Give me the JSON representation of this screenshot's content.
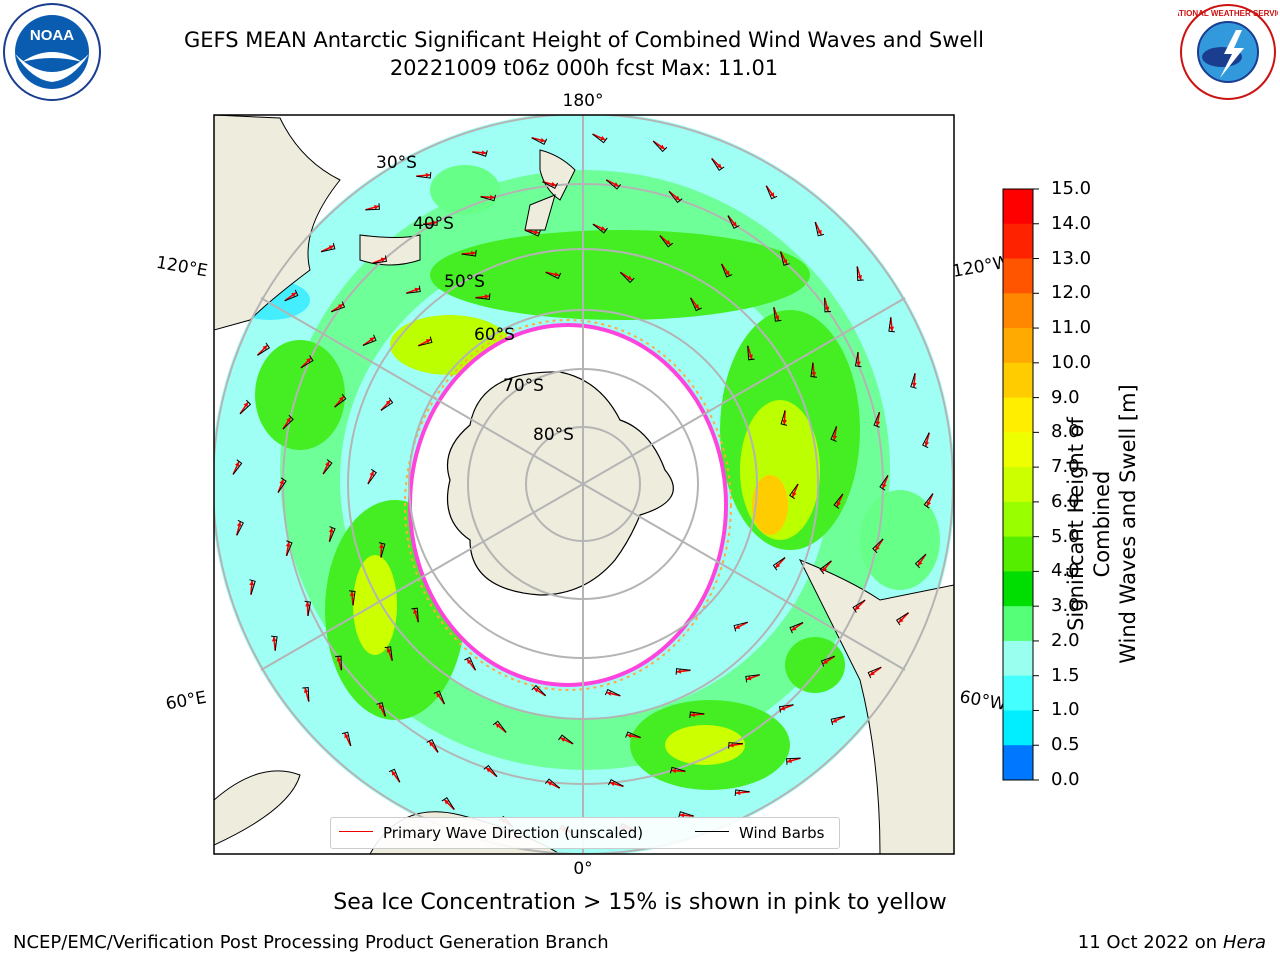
{
  "header": {
    "title": "GEFS MEAN Antarctic Significant Height of Combined Wind Waves and Swell",
    "subtitle": "20221009 t06z 000h fcst   Max: 11.01",
    "noaa_logo_text": "NOAA",
    "nws_logo_text": "NATIONAL WEATHER SERVICE"
  },
  "map": {
    "projection": "south-polar-stereographic",
    "longitude_labels": {
      "top": "180°",
      "upper_left": "120°E",
      "upper_right": "120°W",
      "lower_left": "60°E",
      "lower_right": "60°W",
      "bottom": "0°"
    },
    "latitude_labels": [
      "30°S",
      "40°S",
      "50°S",
      "60°S",
      "70°S",
      "80°S"
    ],
    "legend": {
      "wave_direction": "Primary Wave Direction (unscaled)",
      "wind_barbs": "Wind Barbs"
    },
    "colors": {
      "land": "#eeecdd",
      "ocean_low": "#9ffff5",
      "ice_edge": "#ff44dd",
      "wave_arrow": "#ee0000",
      "grid": "#b4b4b4"
    }
  },
  "colorbar": {
    "title_line1": "Significant Height of Combined",
    "title_line2": "Wind Waves and Swell [m]",
    "ticks": [
      "15.0",
      "14.0",
      "13.0",
      "12.0",
      "11.0",
      "10.0",
      "9.0",
      "8.0",
      "7.0",
      "6.0",
      "5.0",
      "4.0",
      "3.0",
      "2.0",
      "1.5",
      "1.0",
      "0.5",
      "0.0"
    ],
    "colors": [
      "#ff0000",
      "#ff2200",
      "#ff5500",
      "#ff8800",
      "#ffaa00",
      "#ffcc00",
      "#ffee00",
      "#eeff00",
      "#ccff00",
      "#99ff00",
      "#55ee00",
      "#00dd00",
      "#55ff77",
      "#99ffee",
      "#44ffff",
      "#00eeff",
      "#0077ff",
      "#0000ff"
    ]
  },
  "caption": "Sea Ice Concentration > 15% is shown in pink to yellow",
  "footer": {
    "left": "NCEP/EMC/Verification Post Processing Product Generation Branch",
    "right_prefix": "11 Oct 2022 on",
    "right_host": "Hera"
  }
}
